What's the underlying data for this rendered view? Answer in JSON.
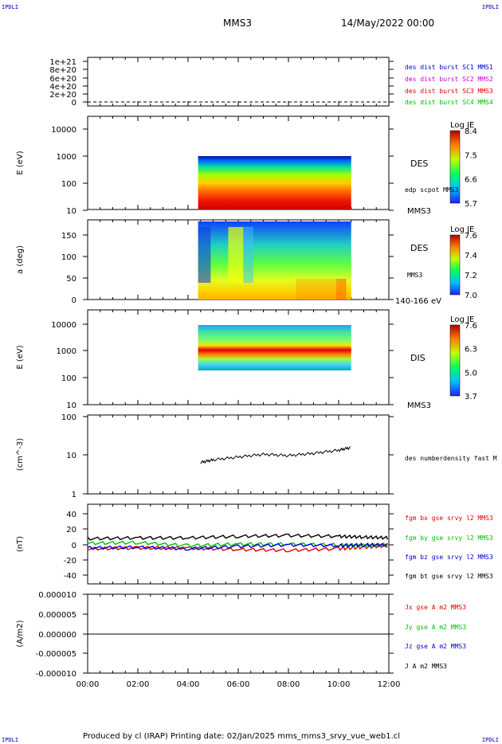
{
  "header": {
    "corner_tl": "IPDLI",
    "corner_tr": "IPDLI",
    "corner_bl": "IPDLI",
    "corner_br": "IPDLI",
    "spacecraft": "MMS3",
    "date": "14/May/2022 00:00"
  },
  "footer": {
    "text": "Produced by cl (IRAP)   Printing date: 02/Jan/2025   mms_mms3_srvy_vue_web1.cl"
  },
  "time_axis": {
    "ticks": [
      "00:00",
      "02:00",
      "04:00",
      "06:00",
      "08:00",
      "10:00",
      "12:00"
    ],
    "range_hours": [
      0,
      12
    ]
  },
  "colors": {
    "red": "#e00000",
    "magenta": "#d000d0",
    "blue": "#0000d0",
    "green": "#00c000",
    "black": "#000000"
  },
  "chart_data": [
    {
      "type": "line",
      "title": "",
      "ylabel": "",
      "yticks": [
        "1e+21",
        "8e+20",
        "6e+20",
        "4e+20",
        "2e+20",
        "0"
      ],
      "legend": [
        "des dist burst SC1 MMS1",
        "des dist burst SC2 MMS2",
        "des dist burst SC3 MMS3",
        "des dist burst SC4 MMS4"
      ],
      "legend_colors": [
        "#0000d0",
        "#d000d0",
        "#e00000",
        "#00c000"
      ],
      "note": ""
    },
    {
      "type": "heatmap",
      "ylabel": "E (eV)",
      "yticks": [
        "10000",
        "1000",
        "100",
        "10"
      ],
      "label": "DES",
      "sublabel": "edp scpot MMS3",
      "bottom_label": "MMS3",
      "colorbar": {
        "title": "Log JE",
        "ticks": [
          "8.4",
          "7.5",
          "6.6",
          "5.7"
        ],
        "range": [
          5.7,
          8.4
        ]
      },
      "data_time_range": [
        4.4,
        10.5
      ],
      "energy_range_eV": [
        10,
        900
      ]
    },
    {
      "type": "heatmap",
      "ylabel": "a (deg)",
      "yticks": [
        "150",
        "100",
        "50",
        "0"
      ],
      "label": "DES",
      "sublabel": "MMS3",
      "bottom_label": "140-166 eV",
      "colorbar": {
        "title": "Log JE",
        "ticks": [
          "7.6",
          "7.4",
          "7.2",
          "7.0"
        ],
        "range": [
          7.0,
          7.6
        ]
      },
      "data_time_range": [
        4.4,
        10.5
      ]
    },
    {
      "type": "heatmap",
      "ylabel": "E (eV)",
      "yticks": [
        "10000",
        "1000",
        "100",
        "10"
      ],
      "label": "DIS",
      "bottom_label": "MMS3",
      "colorbar": {
        "title": "Log JE",
        "ticks": [
          "7.6",
          "6.3",
          "5.0",
          "3.7"
        ],
        "range": [
          3.7,
          7.6
        ]
      },
      "data_time_range": [
        4.4,
        10.5
      ],
      "energy_range_eV": [
        200,
        9000
      ]
    },
    {
      "type": "line",
      "ylabel": "(cm^-3)",
      "yticks": [
        "100",
        "10",
        "1"
      ],
      "legend": [
        "des numberdensity fast M"
      ],
      "legend_colors": [
        "#000000"
      ],
      "series": [
        {
          "x": [
            4.5,
            5.0,
            6.0,
            7.0,
            8.0,
            9.0,
            10.0,
            10.5
          ],
          "y": [
            6.5,
            7.6,
            9.0,
            10.6,
            9.8,
            11.2,
            13.5,
            16.0
          ]
        }
      ],
      "ylim_log": [
        1,
        100
      ]
    },
    {
      "type": "line",
      "ylabel": "(nT)",
      "yticks": [
        "40",
        "20",
        "0",
        "-20",
        "-40"
      ],
      "ylim": [
        -50,
        50
      ],
      "legend": [
        "fgm bx gse srvy l2 MMS3",
        "fgm by gse srvy l2 MMS3",
        "fgm bz gse srvy l2 MMS3",
        "fgm bt gse srvy l2 MMS3"
      ],
      "legend_colors": [
        "#e00000",
        "#00c000",
        "#0000d0",
        "#000000"
      ],
      "series": [
        {
          "x": [
            0,
            2,
            4,
            6,
            8,
            10,
            11,
            12
          ],
          "y": [
            -5,
            -4,
            -4,
            -6,
            -7,
            -5,
            -3,
            -1
          ]
        },
        {
          "x": [
            0,
            2,
            4,
            6,
            8,
            10,
            11,
            12
          ],
          "y": [
            2,
            3,
            -1,
            1,
            1,
            0,
            -1,
            0
          ]
        },
        {
          "x": [
            0,
            2,
            4,
            6,
            8,
            10,
            11,
            12
          ],
          "y": [
            -4,
            -3,
            -5,
            -2,
            0,
            -1,
            0,
            0
          ]
        },
        {
          "x": [
            0,
            2,
            4,
            6,
            8,
            10,
            11,
            12
          ],
          "y": [
            8,
            9,
            9,
            11,
            12,
            11,
            10,
            9
          ]
        }
      ]
    },
    {
      "type": "line",
      "ylabel": "(A/m2)",
      "yticks": [
        "0.000010",
        "0.000005",
        "0.000000",
        "-0.000005",
        "-0.000010"
      ],
      "ylim": [
        -1e-05,
        1e-05
      ],
      "legend": [
        "Jx gse A m2 MMS3",
        "Jy gse A m2 MMS3",
        "Jz gse A m2 MMS3",
        "J A m2 MMS3"
      ],
      "legend_colors": [
        "#e00000",
        "#00c000",
        "#0000d0",
        "#000000"
      ],
      "series": [
        {
          "x": [
            0,
            12
          ],
          "y": [
            0,
            0
          ]
        }
      ]
    }
  ]
}
